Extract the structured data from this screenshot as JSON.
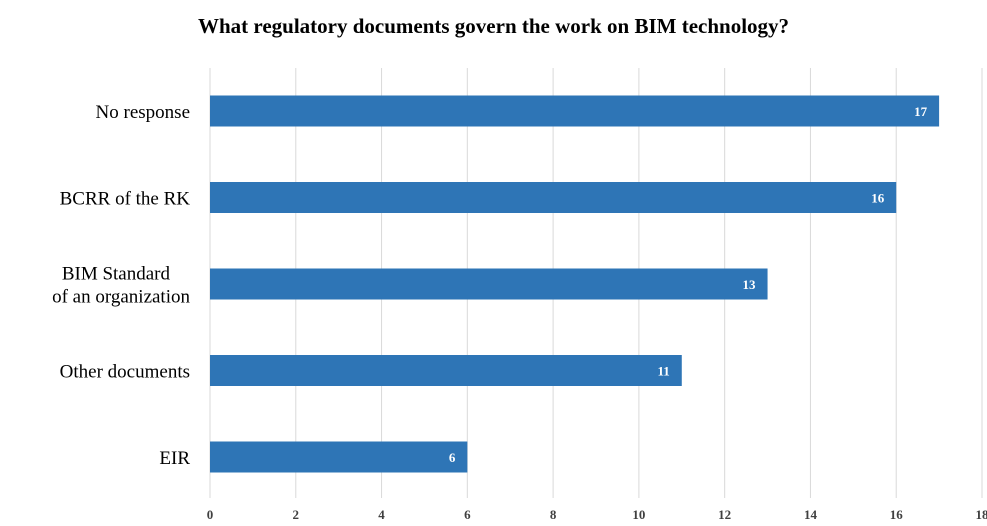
{
  "chart_data": {
    "type": "bar",
    "orientation": "horizontal",
    "title": "What regulatory documents govern the work on BIM technology?",
    "categories": [
      "No response",
      "BCRR of the RK",
      "BIM Standard\nof an organization",
      "Other documents",
      "EIR"
    ],
    "values": [
      17,
      16,
      13,
      11,
      6
    ],
    "xlim": [
      0,
      18
    ],
    "x_ticks": [
      "0",
      "2",
      "4",
      "6",
      "8",
      "10",
      "12",
      "14",
      "16",
      "18"
    ],
    "grid": "vertical",
    "bar_color": "#2E75B6",
    "grid_color": "#D9D9D9",
    "data_labels": true
  }
}
